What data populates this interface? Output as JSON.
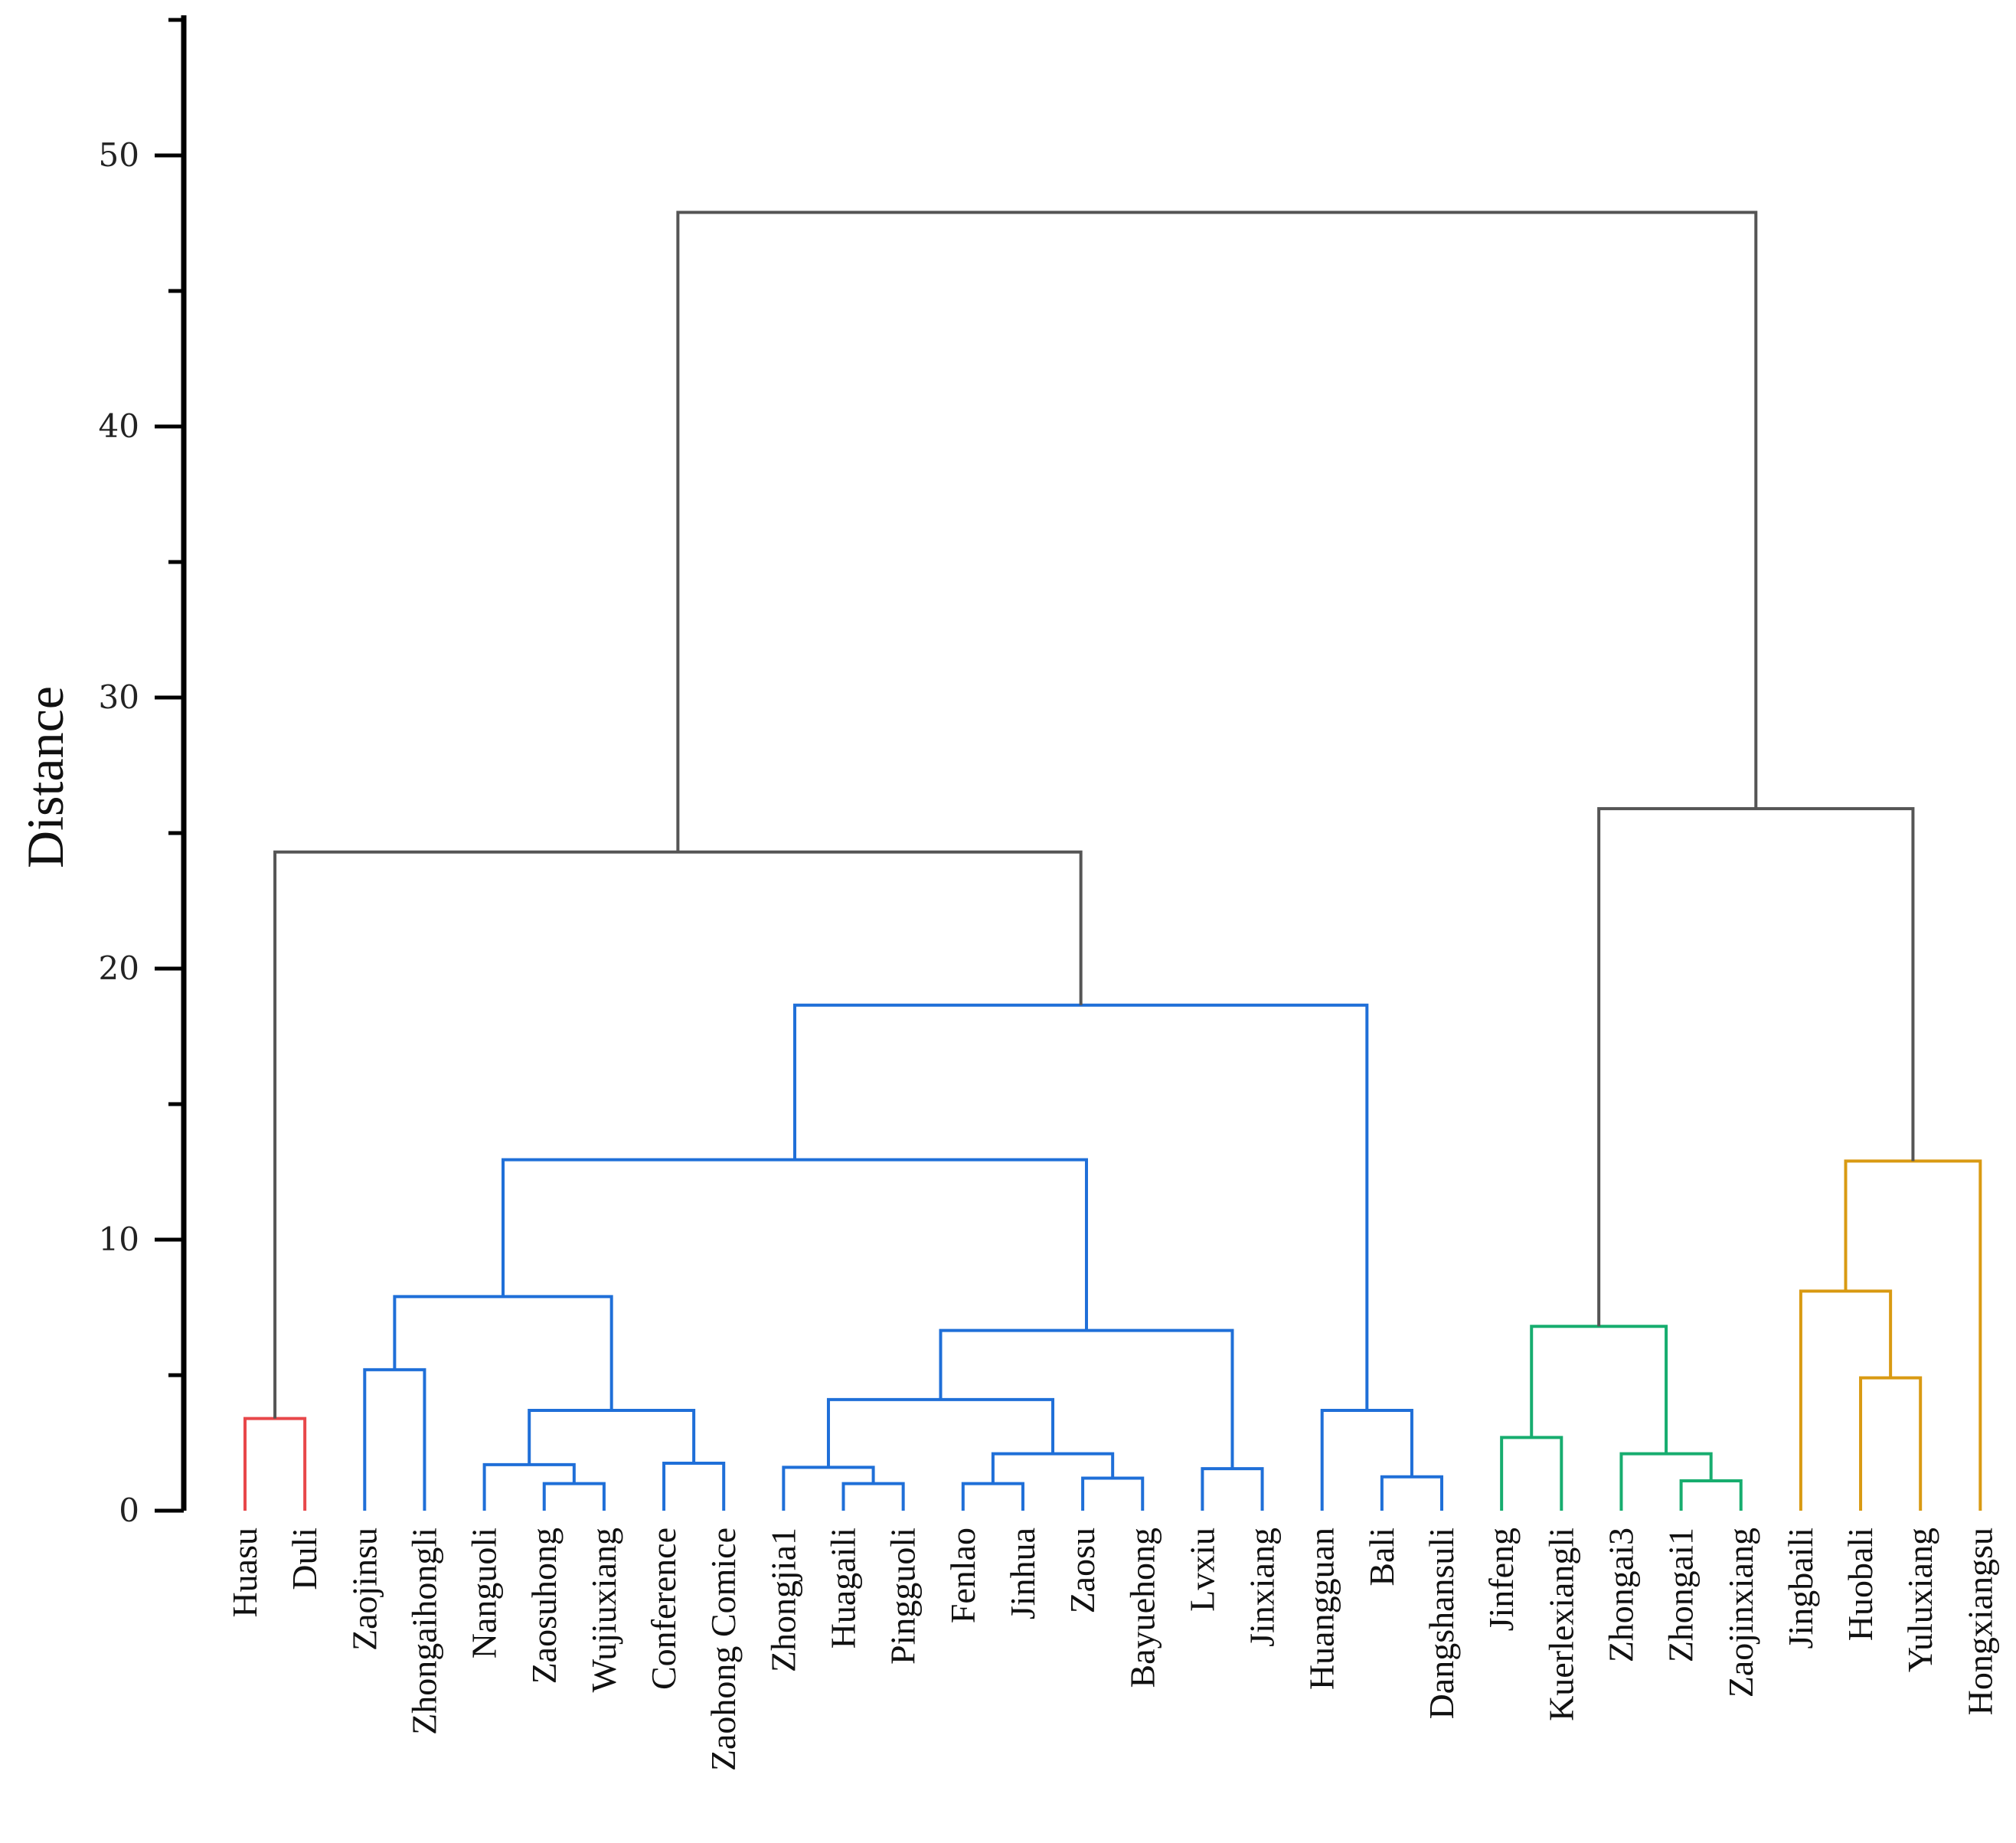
{
  "chart_data": {
    "type": "dendrogram",
    "title": "",
    "ylabel": "Distance",
    "xlabel": "",
    "ylim": [
      0,
      55
    ],
    "yticks": [
      0,
      10,
      20,
      30,
      40,
      50
    ],
    "ytick_labels": [
      "0",
      "10",
      "20",
      "30",
      "40",
      "50"
    ],
    "grid": false,
    "colors": {
      "red": "#e8474a",
      "blue": "#1f6fd8",
      "green": "#17ad6f",
      "orange": "#d99a12",
      "gray": "#555555",
      "axis": "#000000"
    },
    "leaves": [
      "Huasu",
      "Duli",
      "Zaojinsu",
      "Zhongaihongli",
      "Nanguoli",
      "Zaosuhong",
      "Wujiuxiang",
      "Conference",
      "Zaohong Comice",
      "Zhongjia1",
      "Huagaili",
      "Pingguoli",
      "Fenlao",
      "Jinhua",
      "Zaosu",
      "Bayuehong",
      "Lvxiu",
      "Jinxiang",
      "Huangguan",
      "Bali",
      "Dangshansuli",
      "Jinfeng",
      "Kuerlexiangli",
      "Zhongai3",
      "Zhongai1",
      "Zaojinxiang",
      "Jingbaili",
      "Huobali",
      "Yuluxiang",
      "Hongxiangsu"
    ],
    "merges": [
      {
        "id": "m1",
        "left": "Huasu",
        "right": "Duli",
        "height": 3.4,
        "color": "red"
      },
      {
        "id": "m2",
        "left": "Zaojinsu",
        "right": "Zhongaihongli",
        "height": 5.2,
        "color": "blue"
      },
      {
        "id": "m3",
        "left": "Zaosuhong",
        "right": "Wujiuxiang",
        "height": 1.0,
        "color": "blue"
      },
      {
        "id": "m4",
        "left": "Nanguoli",
        "right": "m3",
        "height": 1.7,
        "color": "blue"
      },
      {
        "id": "m5",
        "left": "Conference",
        "right": "Zaohong Comice",
        "height": 1.75,
        "color": "blue"
      },
      {
        "id": "m6",
        "left": "m4",
        "right": "m5",
        "height": 3.7,
        "color": "blue"
      },
      {
        "id": "m7",
        "left": "m2",
        "right": "m6",
        "height": 7.9,
        "color": "blue"
      },
      {
        "id": "m8",
        "left": "Huagaili",
        "right": "Pingguoli",
        "height": 1.0,
        "color": "blue"
      },
      {
        "id": "m9",
        "left": "Zhongjia1",
        "right": "m8",
        "height": 1.6,
        "color": "blue"
      },
      {
        "id": "m10",
        "left": "Fenlao",
        "right": "Jinhua",
        "height": 1.0,
        "color": "blue"
      },
      {
        "id": "m11",
        "left": "Zaosu",
        "right": "Bayuehong",
        "height": 1.2,
        "color": "blue"
      },
      {
        "id": "m12",
        "left": "m10",
        "right": "m11",
        "height": 2.1,
        "color": "blue"
      },
      {
        "id": "m13",
        "left": "m9",
        "right": "m12",
        "height": 4.1,
        "color": "blue"
      },
      {
        "id": "m14",
        "left": "Lvxiu",
        "right": "Jinxiang",
        "height": 1.55,
        "color": "blue"
      },
      {
        "id": "m15",
        "left": "m13",
        "right": "m14",
        "height": 6.65,
        "color": "blue"
      },
      {
        "id": "m16",
        "left": "m7",
        "right": "m15",
        "height": 12.95,
        "color": "blue"
      },
      {
        "id": "m17",
        "left": "Bali",
        "right": "Dangshansuli",
        "height": 1.25,
        "color": "blue"
      },
      {
        "id": "m18",
        "left": "Huangguan",
        "right": "m17",
        "height": 3.7,
        "color": "blue"
      },
      {
        "id": "m19",
        "left": "m16",
        "right": "m18",
        "height": 18.65,
        "color": "blue"
      },
      {
        "id": "m20",
        "left": "m1",
        "right": "m19",
        "height": 24.3,
        "color": "gray"
      },
      {
        "id": "m21",
        "left": "Jinfeng",
        "right": "Kuerlexiangli",
        "height": 2.7,
        "color": "green"
      },
      {
        "id": "m22",
        "left": "Zhongai1",
        "right": "Zaojinxiang",
        "height": 1.1,
        "color": "green"
      },
      {
        "id": "m23",
        "left": "Zhongai3",
        "right": "m22",
        "height": 2.1,
        "color": "green"
      },
      {
        "id": "m24",
        "left": "m21",
        "right": "m23",
        "height": 6.8,
        "color": "green"
      },
      {
        "id": "m25",
        "left": "Yuluxiang",
        "right": "Huobali",
        "height": 4.9,
        "color": "orange"
      },
      {
        "id": "m26",
        "left": "Jingbaili",
        "right": "m25",
        "height": 8.1,
        "color": "orange"
      },
      {
        "id": "m27",
        "left": "m26",
        "right": "Hongxiangsu",
        "height": 12.9,
        "color": "orange"
      },
      {
        "id": "m28",
        "left": "m24",
        "right": "m27",
        "height": 25.9,
        "color": "gray"
      },
      {
        "id": "m29",
        "left": "m20",
        "right": "m28",
        "height": 47.9,
        "color": "gray"
      }
    ]
  }
}
